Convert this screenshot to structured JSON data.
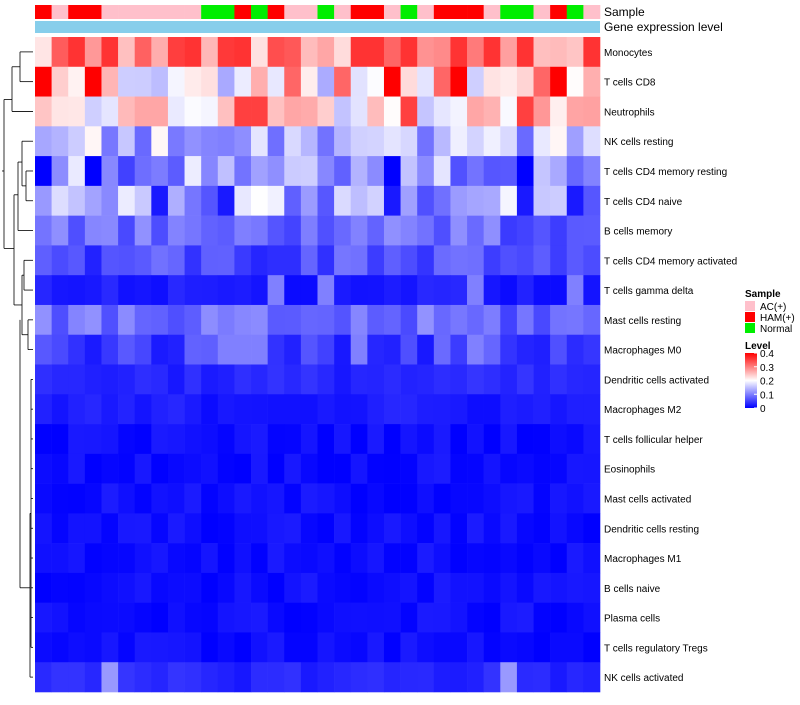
{
  "chart_data": {
    "type": "heatmap",
    "annotation_titles": [
      "Sample",
      "Gene expression level"
    ],
    "legend": {
      "sample_title": "Sample",
      "sample_groups": [
        {
          "name": "AC(+)",
          "color": "#ffc0cb"
        },
        {
          "name": "HAM(+)",
          "color": "#ff0000"
        },
        {
          "name": "Normal",
          "color": "#00ee00"
        }
      ],
      "level_title": "Level",
      "level_ticks": [
        "0.4",
        "0.3",
        "0.2",
        "0.1",
        "0"
      ],
      "level_tick_values": [
        0.4,
        0.3,
        0.2,
        0.1,
        0
      ],
      "level_range": [
        0,
        0.4
      ],
      "scale_colors": {
        "low": "#0000ff",
        "mid": "#ffffff",
        "high": "#ff0000"
      },
      "scale_midpoint": 0.2
    },
    "gene_level_color": "#87ceeb",
    "sample_annotation": [
      "HAM(+)",
      "AC(+)",
      "HAM(+)",
      "HAM(+)",
      "AC(+)",
      "AC(+)",
      "AC(+)",
      "AC(+)",
      "AC(+)",
      "AC(+)",
      "Normal",
      "Normal",
      "HAM(+)",
      "Normal",
      "HAM(+)",
      "AC(+)",
      "AC(+)",
      "Normal",
      "AC(+)",
      "HAM(+)",
      "HAM(+)",
      "AC(+)",
      "Normal",
      "AC(+)",
      "HAM(+)",
      "HAM(+)",
      "HAM(+)",
      "AC(+)",
      "Normal",
      "Normal",
      "AC(+)",
      "HAM(+)",
      "Normal",
      "AC(+)"
    ],
    "row_labels": [
      "Monocytes",
      "T cells CD8",
      "Neutrophils",
      "NK cells resting",
      "T cells CD4 memory resting",
      "T cells CD4 naive",
      "B cells memory",
      "T cells CD4 memory activated",
      "T cells gamma delta",
      "Mast cells resting",
      "Macrophages M0",
      "Dendritic cells activated",
      "Macrophages M2",
      "T cells follicular helper",
      "Eosinophils",
      "Mast cells activated",
      "Dendritic cells resting",
      "Macrophages M1",
      "B cells naive",
      "Plasma cells",
      "T cells regulatory  Tregs",
      "NK cells activated"
    ],
    "row_levels": [
      0.29,
      0.2,
      0.22,
      0.15,
      0.12,
      0.13,
      0.08,
      0.06,
      0.02,
      0.08,
      0.05,
      0.03,
      0.02,
      0.01,
      0.01,
      0.01,
      0.01,
      0.01,
      0.01,
      0.01,
      0.01,
      0.03
    ],
    "highlight_cells": [
      {
        "row": "Monocytes",
        "cols": [
          2,
          4,
          9,
          12,
          19,
          20,
          22,
          25,
          27,
          29,
          33
        ],
        "value": 0.36
      },
      {
        "row": "T cells CD8",
        "cols": [
          0,
          3,
          21,
          25,
          31
        ],
        "value": 0.4
      },
      {
        "row": "T cells CD8",
        "cols": [
          15,
          18,
          24,
          30
        ],
        "value": 0.32
      },
      {
        "row": "Neutrophils",
        "cols": [
          12,
          13,
          22,
          29
        ],
        "value": 0.35
      },
      {
        "row": "Neutrophils",
        "cols": [
          6,
          7,
          15,
          26
        ],
        "value": 0.27
      },
      {
        "row": "T cells CD4 memory resting",
        "cols": [
          0,
          3,
          21,
          29
        ],
        "value": 0.0
      },
      {
        "row": "T cells CD4 naive",
        "cols": [
          7,
          11,
          21,
          29,
          32
        ],
        "value": 0.02
      },
      {
        "row": "T cells gamma delta",
        "cols": [
          14,
          17,
          26,
          32
        ],
        "value": 0.1
      },
      {
        "row": "Macrophages M0",
        "cols": [
          11,
          12,
          13,
          19,
          26
        ],
        "value": 0.1
      },
      {
        "row": "NK cells activated",
        "cols": [
          4,
          28
        ],
        "value": 0.12
      }
    ],
    "dendrogram": "hierarchical clustering of rows"
  }
}
